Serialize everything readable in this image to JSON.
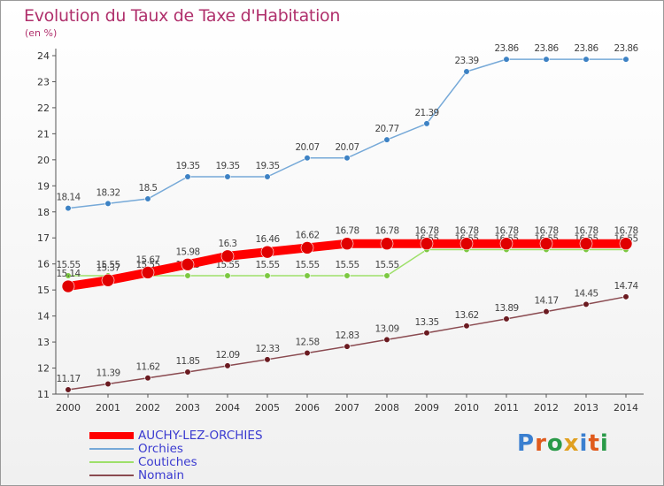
{
  "title": "Evolution du Taux de Taxe d'Habitation",
  "unit": "(en %)",
  "logo": {
    "text": "Proxiti",
    "colors": [
      "#3a7fd0",
      "#e05a1c",
      "#2a9a48",
      "#e0a020",
      "#3a7fd0",
      "#e05a1c",
      "#2a9a48"
    ]
  },
  "chart_data": {
    "type": "line",
    "x": [
      "2000",
      "2001",
      "2002",
      "2003",
      "2004",
      "2005",
      "2006",
      "2007",
      "2008",
      "2009",
      "2010",
      "2011",
      "2012",
      "2013",
      "2014"
    ],
    "ylim": [
      11,
      24
    ],
    "yticks": [
      11,
      12,
      13,
      14,
      15,
      16,
      17,
      18,
      19,
      20,
      21,
      22,
      23,
      24
    ],
    "grid": false,
    "legend_position": "bottom-left",
    "series": [
      {
        "name": "AUCHY-LEZ-ORCHIES",
        "color": "#ff0000",
        "marker": "#e00000",
        "values": [
          15.14,
          15.37,
          15.67,
          15.98,
          16.3,
          16.46,
          16.62,
          16.78,
          16.78,
          16.78,
          16.78,
          16.78,
          16.78,
          16.78,
          16.78
        ]
      },
      {
        "name": "Orchies",
        "color": "#76a9d8",
        "marker": "#3d82c4",
        "values": [
          18.14,
          18.32,
          18.5,
          19.35,
          19.35,
          19.35,
          20.07,
          20.07,
          20.77,
          21.39,
          23.39,
          23.86,
          23.86,
          23.86,
          23.86
        ]
      },
      {
        "name": "Coutiches",
        "color": "#9ee06a",
        "marker": "#7cc842",
        "values": [
          15.55,
          15.55,
          15.55,
          15.55,
          15.55,
          15.55,
          15.55,
          15.55,
          15.55,
          16.55,
          16.55,
          16.55,
          16.55,
          16.55,
          16.55
        ]
      },
      {
        "name": "Nomain",
        "color": "#8a4a50",
        "marker": "#6a1a20",
        "values": [
          11.17,
          11.39,
          11.62,
          11.85,
          12.09,
          12.33,
          12.58,
          12.83,
          13.09,
          13.35,
          13.62,
          13.89,
          14.17,
          14.45,
          14.74
        ]
      }
    ]
  }
}
